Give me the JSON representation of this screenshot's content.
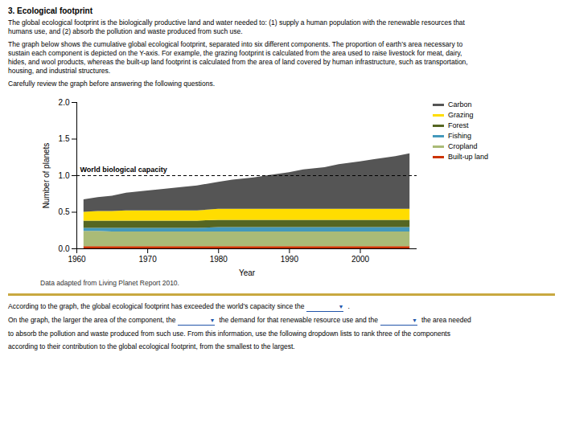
{
  "chart_data": {
    "type": "area",
    "stacked": true,
    "title": "3. Ecological footprint",
    "subtitle": [
      [
        "The global ecological footprint is the biologically productive land and water needed to: (1) supply a human population with the renewable resources that",
        "humans use, and (2) absorb the pollution and waste produced from such use."
      ],
      [
        "The graph below shows the cumulative global ecological footprint, separated into six different components. The proportion of earth’s area necessary to",
        "sustain each component is depicted on the Y-axis. For example, the ​grazing​ footprint is calculated from the ​area​ used to raise livestock for meat, dairy,",
        "hides, and wool products, whereas the ​built-up land​ footprint is calculated from the area of land covered by human infrastructure, such as transportation,",
        "housing, and industrial structures."
      ],
      [
        "Carefully review the graph before answering the following questions."
      ]
    ],
    "x": [
      1961,
      1963,
      1965,
      1967,
      1970,
      1972,
      1975,
      1977,
      1980,
      1982,
      1985,
      1987,
      1990,
      1992,
      1995,
      1997,
      2000,
      2002,
      2005,
      2007
    ],
    "series": [
      {
        "name": "Built-up land",
        "color": "#CC3300",
        "values": [
          0.03,
          0.03,
          0.03,
          0.03,
          0.03,
          0.03,
          0.03,
          0.03,
          0.03,
          0.03,
          0.03,
          0.03,
          0.03,
          0.03,
          0.03,
          0.03,
          0.03,
          0.03,
          0.03,
          0.03
        ]
      },
      {
        "name": "Cropland",
        "color": "#AABB77",
        "values": [
          0.21,
          0.21,
          0.2,
          0.2,
          0.2,
          0.2,
          0.2,
          0.2,
          0.2,
          0.2,
          0.2,
          0.2,
          0.2,
          0.2,
          0.2,
          0.2,
          0.2,
          0.2,
          0.2,
          0.2
        ]
      },
      {
        "name": "Fishing",
        "color": "#4499BB",
        "values": [
          0.04,
          0.04,
          0.05,
          0.05,
          0.05,
          0.05,
          0.05,
          0.05,
          0.06,
          0.06,
          0.06,
          0.06,
          0.06,
          0.06,
          0.06,
          0.06,
          0.06,
          0.06,
          0.06,
          0.06
        ]
      },
      {
        "name": "Forest",
        "color": "#556622",
        "values": [
          0.1,
          0.1,
          0.1,
          0.1,
          0.1,
          0.1,
          0.1,
          0.1,
          0.1,
          0.1,
          0.1,
          0.1,
          0.1,
          0.1,
          0.1,
          0.1,
          0.1,
          0.1,
          0.1,
          0.1
        ]
      },
      {
        "name": "Grazing",
        "color": "#FFDD00",
        "values": [
          0.12,
          0.13,
          0.13,
          0.14,
          0.14,
          0.14,
          0.14,
          0.14,
          0.15,
          0.15,
          0.15,
          0.15,
          0.15,
          0.15,
          0.15,
          0.15,
          0.15,
          0.15,
          0.15,
          0.15
        ]
      },
      {
        "name": "Carbon",
        "color": "#555555",
        "values": [
          0.17,
          0.19,
          0.21,
          0.24,
          0.27,
          0.29,
          0.32,
          0.34,
          0.37,
          0.4,
          0.43,
          0.46,
          0.5,
          0.54,
          0.57,
          0.61,
          0.65,
          0.68,
          0.72,
          0.76
        ]
      }
    ],
    "xlim": [
      1960,
      2008
    ],
    "xticks": [
      1960,
      1970,
      1980,
      1990,
      2000
    ],
    "ylim": [
      0.0,
      2.0
    ],
    "yticks": [
      {
        "value": 0.0,
        "label": "0.0"
      },
      0.5,
      {
        "value": 1.0,
        "label": "1.0"
      },
      1.5,
      {
        "value": 2.0,
        "label": "2.0"
      }
    ],
    "xlabel": "Year",
    "ylabel": "Number of planets",
    "annotations": [
      {
        "text": "World biological capacity",
        "y": 1.0,
        "line_style": "dashed"
      }
    ],
    "legend": "right",
    "grid": false,
    "caption": "Data adapted from Living Planet Report 2010.",
    "footer": [
      [
        "According to the graph, the global ecological footprint has exceeded the world’s capacity since the",
        "▼",
        "."
      ],
      [
        "On the graph, the larger the area of the component, the",
        "▼",
        "the demand for that renewable resource use and the",
        "▼",
        "the area needed"
      ],
      [
        "to absorb the pollution and waste produced from such use. From this information, use the following dropdown lists to rank three of the components"
      ],
      [
        "according to their contribution to the global ecological footprint, from the smallest to the largest."
      ]
    ]
  }
}
